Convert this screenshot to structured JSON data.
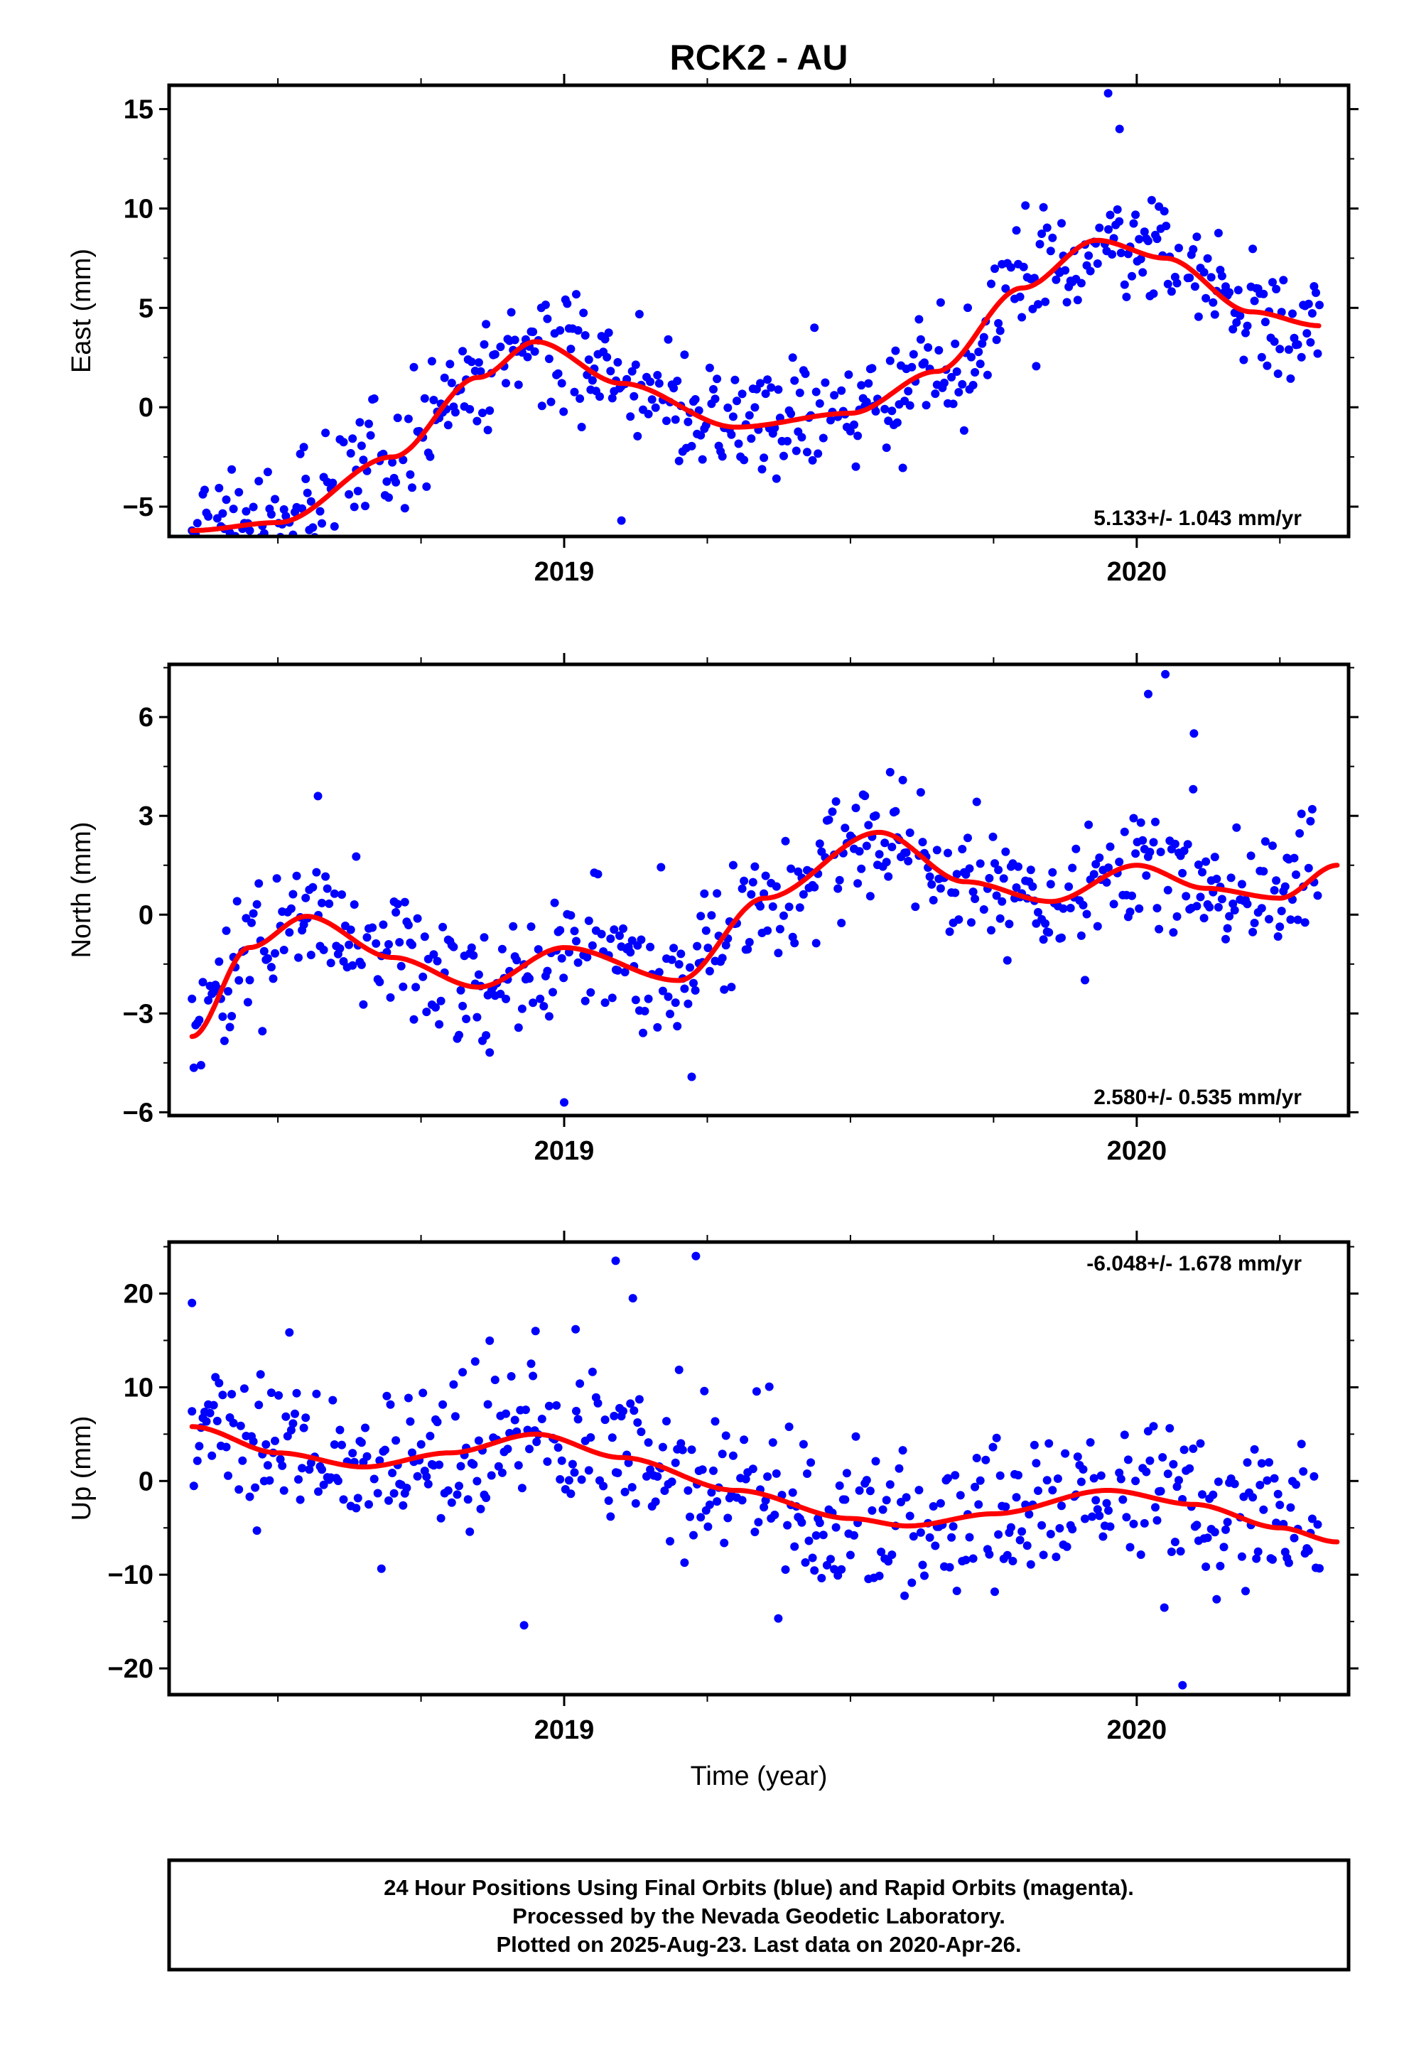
{
  "title": "RCK2 - AU",
  "xlabel": "Time (year)",
  "footer": {
    "lines": [
      "24 Hour Positions Using Final Orbits (blue) and Rapid Orbits (magenta).",
      "Processed by the Nevada Geodetic Laboratory.",
      "Plotted on 2025-Aug-23. Last data on 2020-Apr-26."
    ]
  },
  "colors": {
    "points": "#0000ff",
    "fit": "#ff0000",
    "frame": "#000000"
  },
  "chart_data": [
    {
      "type": "scatter",
      "ylabel": "East (mm)",
      "rate_label": "5.133+/- 1.043 mm/yr",
      "xlim": [
        2018.31,
        2020.37
      ],
      "ylim": [
        -6.5,
        16.2
      ],
      "yticks": [
        -5,
        0,
        5,
        10,
        15
      ],
      "xticks": [
        2019,
        2020
      ],
      "fit": {
        "t": [
          2018.35,
          2018.5,
          2018.7,
          2018.85,
          2018.95,
          2019.1,
          2019.3,
          2019.5,
          2019.65,
          2019.8,
          2019.93,
          2020.05,
          2020.2,
          2020.32
        ],
        "y": [
          -6.2,
          -5.8,
          -2.5,
          1.5,
          3.3,
          1.2,
          -1.0,
          -0.3,
          1.8,
          6.0,
          8.4,
          7.5,
          4.8,
          4.1
        ]
      },
      "noise": 1.5,
      "outliers": [
        [
          2019.95,
          15.8
        ],
        [
          2019.97,
          14.0
        ],
        [
          2019.1,
          -5.7
        ],
        [
          2018.96,
          5.0
        ]
      ]
    },
    {
      "type": "scatter",
      "ylabel": "North (mm)",
      "rate_label": "2.580+/- 0.535 mm/yr",
      "xlim": [
        2018.31,
        2020.37
      ],
      "ylim": [
        -6.1,
        7.6
      ],
      "yticks": [
        -6,
        -3,
        0,
        3,
        6
      ],
      "xticks": [
        2019,
        2020
      ],
      "fit": {
        "t": [
          2018.35,
          2018.45,
          2018.55,
          2018.7,
          2018.85,
          2019.0,
          2019.2,
          2019.35,
          2019.55,
          2019.7,
          2019.85,
          2020.0,
          2020.12,
          2020.25,
          2020.35
        ],
        "y": [
          -3.7,
          -1.0,
          -0.05,
          -1.3,
          -2.2,
          -1.0,
          -2.0,
          0.5,
          2.5,
          1.0,
          0.4,
          1.5,
          0.8,
          0.5,
          1.5
        ]
      },
      "noise": 1.0,
      "outliers": [
        [
          2018.57,
          3.6
        ],
        [
          2020.02,
          6.7
        ],
        [
          2020.05,
          7.3
        ],
        [
          2019.0,
          -5.7
        ],
        [
          2020.1,
          5.5
        ]
      ]
    },
    {
      "type": "scatter",
      "ylabel": "Up (mm)",
      "rate_label": "-6.048+/- 1.678 mm/yr",
      "xlim": [
        2018.31,
        2020.37
      ],
      "ylim": [
        -22.8,
        25.5
      ],
      "yticks": [
        -20,
        -10,
        0,
        10,
        20
      ],
      "xticks": [
        2019,
        2020
      ],
      "fit": {
        "t": [
          2018.35,
          2018.5,
          2018.65,
          2018.8,
          2018.95,
          2019.1,
          2019.3,
          2019.5,
          2019.6,
          2019.75,
          2019.95,
          2020.1,
          2020.25,
          2020.35
        ],
        "y": [
          5.8,
          3.0,
          1.5,
          3.0,
          5.0,
          2.5,
          -1.0,
          -4.0,
          -4.8,
          -3.5,
          -1.0,
          -2.5,
          -5.0,
          -6.5
        ]
      },
      "noise": 4.2,
      "outliers": [
        [
          2018.35,
          19.0
        ],
        [
          2019.09,
          23.5
        ],
        [
          2019.23,
          24.0
        ],
        [
          2019.12,
          19.5
        ],
        [
          2018.93,
          -15.4
        ],
        [
          2020.08,
          -21.8
        ],
        [
          2018.95,
          16.0
        ],
        [
          2019.02,
          16.2
        ]
      ]
    }
  ]
}
